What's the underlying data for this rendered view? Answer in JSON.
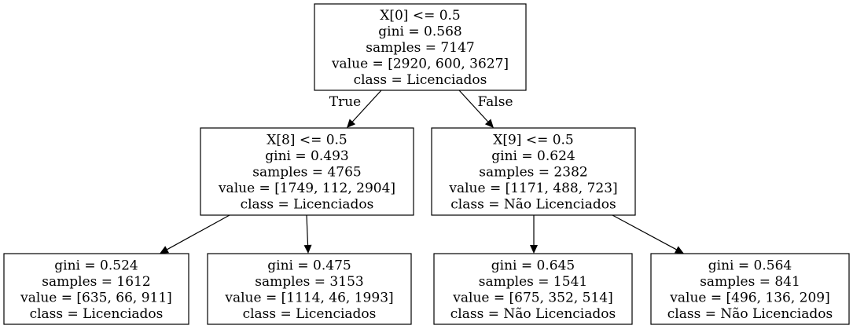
{
  "nodes": [
    {
      "id": "root",
      "lines": [
        "X[0] <= 0.5",
        "gini = 0.568",
        "samples = 7147",
        "value = [2920, 600, 3627]",
        "class = Licenciados"
      ]
    },
    {
      "id": "n1",
      "lines": [
        "X[8] <= 0.5",
        "gini = 0.493",
        "samples = 4765",
        "value = [1749, 112, 2904]",
        "class = Licenciados"
      ]
    },
    {
      "id": "n2",
      "lines": [
        "X[9] <= 0.5",
        "gini = 0.624",
        "samples = 2382",
        "value = [1171, 488, 723]",
        "class = Não Licenciados"
      ]
    },
    {
      "id": "n3",
      "lines": [
        "gini = 0.524",
        "samples = 1612",
        "value = [635, 66, 911]",
        "class = Licenciados"
      ]
    },
    {
      "id": "n4",
      "lines": [
        "gini = 0.475",
        "samples = 3153",
        "value = [1114, 46, 1993]",
        "class = Licenciados"
      ]
    },
    {
      "id": "n5",
      "lines": [
        "gini = 0.645",
        "samples = 1541",
        "value = [675, 352, 514]",
        "class = Não Licenciados"
      ]
    },
    {
      "id": "n6",
      "lines": [
        "gini = 0.564",
        "samples = 841",
        "value = [496, 136, 209]",
        "class = Não Licenciados"
      ]
    }
  ],
  "edges": [
    {
      "from": "root",
      "to": "n1",
      "label": "True"
    },
    {
      "from": "root",
      "to": "n2",
      "label": "False"
    },
    {
      "from": "n1",
      "to": "n3",
      "label": ""
    },
    {
      "from": "n1",
      "to": "n4",
      "label": ""
    },
    {
      "from": "n2",
      "to": "n5",
      "label": ""
    },
    {
      "from": "n2",
      "to": "n6",
      "label": ""
    }
  ]
}
